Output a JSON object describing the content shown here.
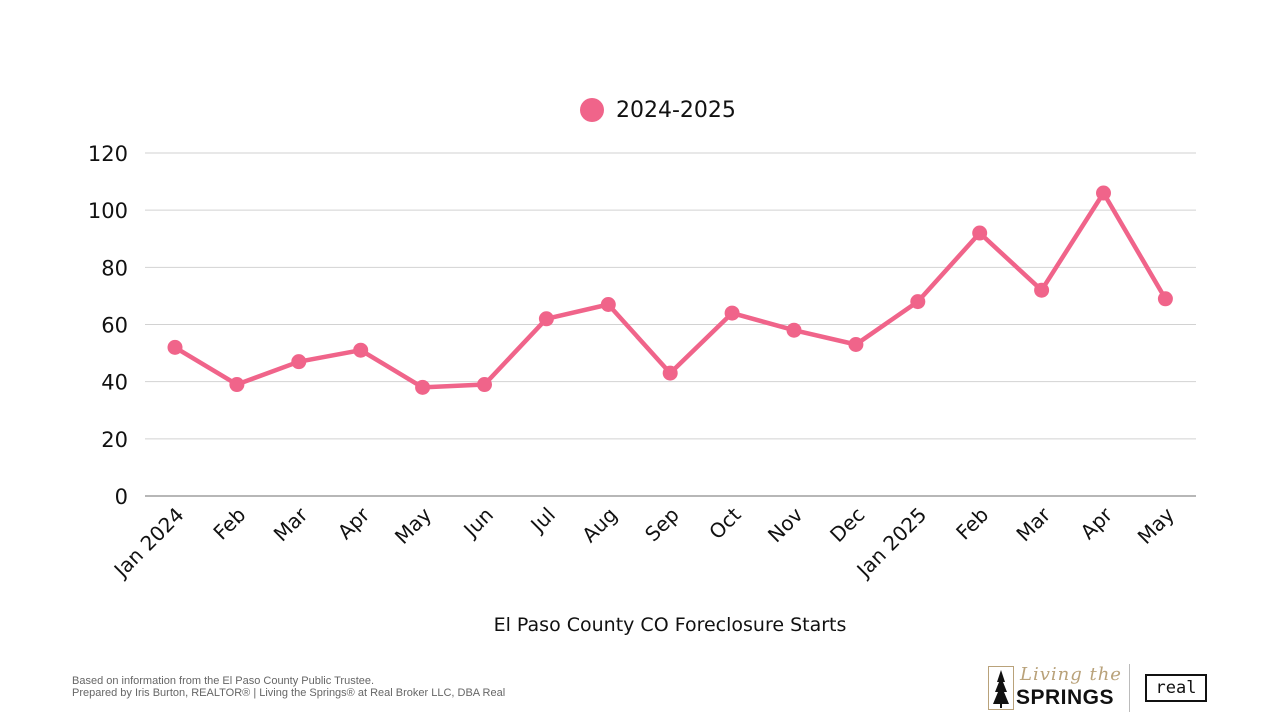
{
  "chart_data": {
    "type": "line",
    "categories": [
      "Jan 2024",
      "Feb",
      "Mar",
      "Apr",
      "May",
      "Jun",
      "Jul",
      "Aug",
      "Sep",
      "Oct",
      "Nov",
      "Dec",
      "Jan 2025",
      "Feb",
      "Mar",
      "Apr",
      "May"
    ],
    "series": [
      {
        "name": "2024-2025",
        "color": "#f0648a",
        "values": [
          52,
          39,
          47,
          51,
          38,
          39,
          62,
          67,
          43,
          64,
          58,
          53,
          68,
          92,
          72,
          106,
          69
        ]
      }
    ],
    "xlabel": "El Paso County CO Foreclosure Starts",
    "ylabel": "",
    "ylim": [
      0,
      120
    ],
    "yticks": [
      0,
      20,
      40,
      60,
      80,
      100,
      120
    ],
    "grid": true,
    "legend": "top-center"
  },
  "footer": {
    "line1": "Based on information from the El Paso County Public Trustee.",
    "line2": "Prepared by Iris Burton, REALTOR® | Living the Springs® at Real Broker LLC, DBA Real"
  },
  "branding": {
    "script": "Living the",
    "word": "SPRINGS",
    "partner": "real",
    "tree_icon": "pine-tree-icon"
  }
}
